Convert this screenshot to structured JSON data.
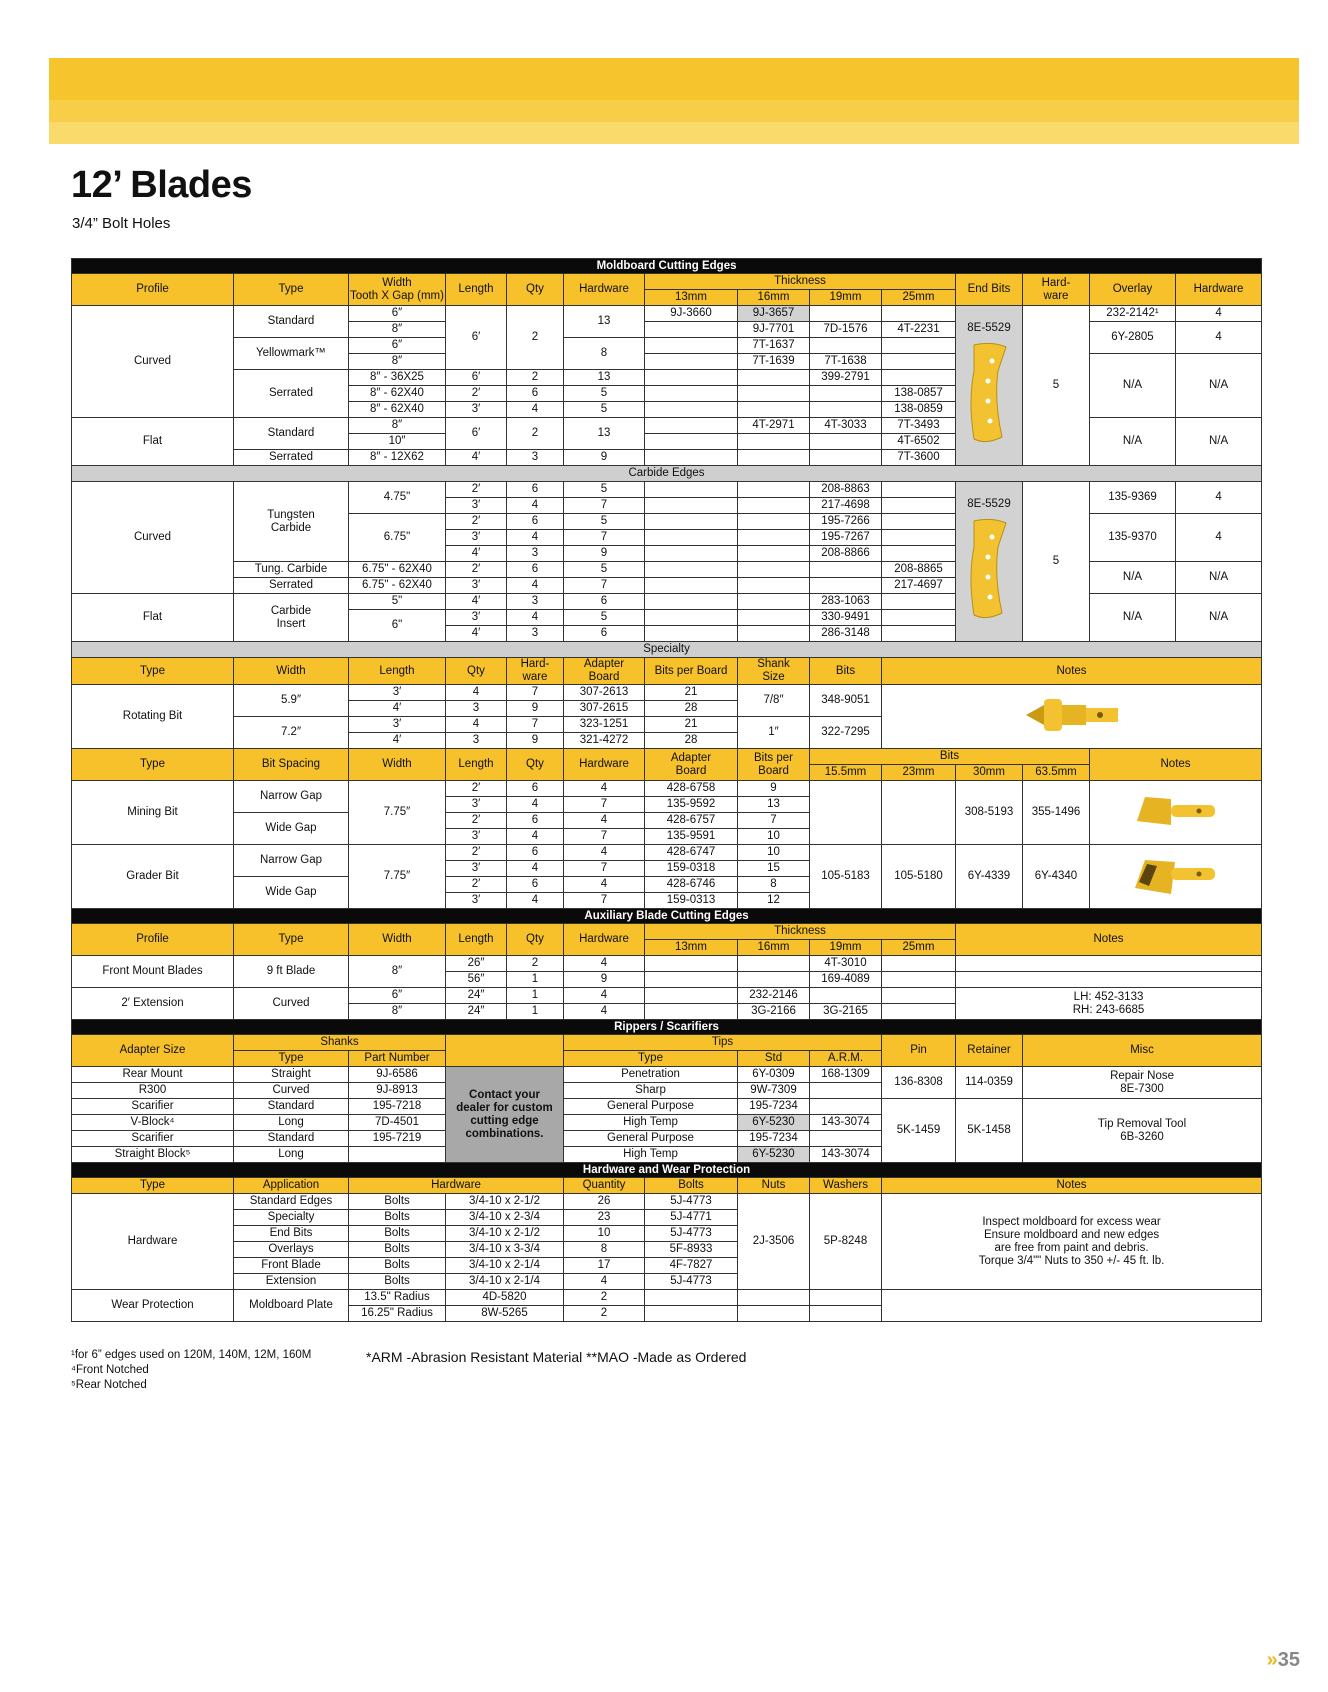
{
  "page": {
    "title": "12’ Blades",
    "subtitle": "3/4” Bolt Holes",
    "page_marker": "»",
    "page_number": "35"
  },
  "colors": {
    "accent_yellow": "#F6C12A",
    "section_black": "#0a0a0a",
    "section_gray": "#cfcfcf"
  },
  "rows": [
    [
      "Moldboard Cutting Edges"
    ],
    [
      "Profile",
      "Type",
      "Width\nTooth X Gap (mm)",
      "Length",
      "Qty",
      "Hardware",
      "Thickness",
      "End Bits",
      "Hard-\nware",
      "Overlay",
      "Hardware"
    ],
    [
      "13mm",
      "16mm",
      "19mm",
      "25mm"
    ],
    [
      "Curved",
      "Standard",
      "6″",
      "6′",
      "2",
      "13",
      "9J-3660",
      "9J-3657",
      "",
      "",
      "8E-5529",
      "5",
      "232-2142¹",
      "4"
    ],
    [
      "8″",
      "",
      "9J-7701",
      "7D-1576",
      "4T-2231",
      "6Y-2805",
      "4"
    ],
    [
      "Yellowmark™",
      "6″",
      "8",
      "",
      "7T-1637",
      "",
      ""
    ],
    [
      "8″",
      "",
      "7T-1639",
      "7T-1638",
      "",
      "N/A",
      "N/A"
    ],
    [
      "Serrated",
      "8″ - 36X25",
      "6′",
      "2",
      "13",
      "",
      "",
      "399-2791",
      ""
    ],
    [
      "8″ - 62X40",
      "2′",
      "6",
      "5",
      "",
      "",
      "",
      "138-0857"
    ],
    [
      "8″ - 62X40",
      "3′",
      "4",
      "5",
      "",
      "",
      "",
      "138-0859"
    ],
    [
      "Flat",
      "Standard",
      "8″",
      "6′",
      "2",
      "13",
      "",
      "4T-2971",
      "4T-3033",
      "7T-3493",
      "N/A",
      "N/A"
    ],
    [
      "10″",
      "",
      "",
      "",
      "4T-6502"
    ],
    [
      "Serrated",
      "8″ - 12X62",
      "4′",
      "3",
      "9",
      "",
      "",
      "",
      "7T-3600"
    ],
    [
      "Carbide Edges"
    ],
    [
      "Curved",
      "Tungsten\nCarbide",
      "4.75\"",
      "2′",
      "6",
      "5",
      "",
      "",
      "208-8863",
      "",
      "8E-5529",
      "5",
      "135-9369",
      "4"
    ],
    [
      "3′",
      "4",
      "7",
      "",
      "",
      "217-4698",
      ""
    ],
    [
      "6.75\"",
      "2′",
      "6",
      "5",
      "",
      "",
      "195-7266",
      "",
      "135-9370",
      "4"
    ],
    [
      "3′",
      "4",
      "7",
      "",
      "",
      "195-7267",
      ""
    ],
    [
      "4′",
      "3",
      "9",
      "",
      "",
      "208-8866",
      ""
    ],
    [
      "Tung. Carbide",
      "6.75\" - 62X40",
      "2′",
      "6",
      "5",
      "",
      "",
      "",
      "208-8865",
      "N/A",
      "N/A"
    ],
    [
      "Serrated",
      "6.75\" - 62X40",
      "3′",
      "4",
      "7",
      "",
      "",
      "",
      "217-4697"
    ],
    [
      "Flat",
      "Carbide\nInsert",
      "5\"",
      "4′",
      "3",
      "6",
      "",
      "",
      "283-1063",
      "",
      "N/A",
      "N/A"
    ],
    [
      "6\"",
      "3′",
      "4",
      "5",
      "",
      "",
      "330-9491",
      ""
    ],
    [
      "4′",
      "3",
      "6",
      "",
      "",
      "286-3148",
      ""
    ],
    [
      "Specialty"
    ],
    [
      "Type",
      "Width",
      "Length",
      "Qty",
      "Hard-\nware",
      "Adapter\nBoard",
      "Bits per Board",
      "Shank\nSize",
      "Bits",
      "Notes"
    ],
    [
      "Rotating Bit",
      "5.9″",
      "3′",
      "4",
      "7",
      "307-2613",
      "21",
      "7/8″",
      "348-9051",
      ""
    ],
    [
      "4′",
      "3",
      "9",
      "307-2615",
      "28"
    ],
    [
      "7.2″",
      "3′",
      "4",
      "7",
      "323-1251",
      "21",
      "1″",
      "322-7295"
    ],
    [
      "4′",
      "3",
      "9",
      "321-4272",
      "28"
    ],
    [
      "Type",
      "Bit Spacing",
      "Width",
      "Length",
      "Qty",
      "Hardware",
      "Adapter\nBoard",
      "Bits per\nBoard",
      "Bits",
      "Notes"
    ],
    [
      "15.5mm",
      "23mm",
      "30mm",
      "63.5mm"
    ],
    [
      "Mining Bit",
      "Narrow Gap",
      "7.75″",
      "2′",
      "6",
      "4",
      "428-6758",
      "9",
      "",
      "",
      "308-5193",
      "355-1496",
      ""
    ],
    [
      "3′",
      "4",
      "7",
      "135-9592",
      "13"
    ],
    [
      "Wide Gap",
      "2′",
      "6",
      "4",
      "428-6757",
      "7"
    ],
    [
      "3′",
      "4",
      "7",
      "135-9591",
      "10"
    ],
    [
      "Grader Bit",
      "Narrow Gap",
      "7.75″",
      "2′",
      "6",
      "4",
      "428-6747",
      "10",
      "105-5183",
      "105-5180",
      "6Y-4339",
      "6Y-4340",
      ""
    ],
    [
      "3′",
      "4",
      "7",
      "159-0318",
      "15"
    ],
    [
      "Wide Gap",
      "2′",
      "6",
      "4",
      "428-6746",
      "8"
    ],
    [
      "3′",
      "4",
      "7",
      "159-0313",
      "12"
    ],
    [
      "Auxiliary Blade Cutting Edges"
    ],
    [
      "Profile",
      "Type",
      "Width",
      "Length",
      "Qty",
      "Hardware",
      "Thickness",
      "Notes"
    ],
    [
      "13mm",
      "16mm",
      "19mm",
      "25mm"
    ],
    [
      "Front Mount Blades",
      "9 ft Blade",
      "8″",
      "26″",
      "2",
      "4",
      "",
      "",
      "4T-3010",
      "",
      ""
    ],
    [
      "56″",
      "1",
      "9",
      "",
      "",
      "169-4089",
      "",
      ""
    ],
    [
      "2′ Extension",
      "Curved",
      "6″",
      "24″",
      "1",
      "4",
      "",
      "232-2146",
      "",
      "",
      "LH: 452-3133\nRH: 243-6685"
    ],
    [
      "8″",
      "24″",
      "1",
      "4",
      "",
      "3G-2166",
      "3G-2165",
      ""
    ],
    [
      "Rippers / Scarifiers"
    ],
    [
      "Adapter Size",
      "Shanks",
      "",
      "Tips",
      "Pin",
      "Retainer",
      "Misc"
    ],
    [
      "Type",
      "Part Number",
      "Type",
      "Std",
      "A.R.M."
    ],
    [
      "Rear Mount",
      "Straight",
      "9J-6586",
      "Contact your\ndealer for custom\ncutting edge\ncombinations.",
      "Penetration",
      "6Y-0309",
      "168-1309",
      "136-8308",
      "114-0359",
      "Repair Nose\n8E-7300"
    ],
    [
      "R300",
      "Curved",
      "9J-8913",
      "Sharp",
      "9W-7309",
      ""
    ],
    [
      "Scarifier",
      "Standard",
      "195-7218",
      "General Purpose",
      "195-7234",
      "",
      "5K-1459",
      "5K-1458",
      "Tip Removal Tool\n6B-3260"
    ],
    [
      "V-Block⁴",
      "Long",
      "7D-4501",
      "High Temp",
      "6Y-5230",
      "143-3074"
    ],
    [
      "Scarifier",
      "Standard",
      "195-7219",
      "General Purpose",
      "195-7234",
      ""
    ],
    [
      "Straight Block⁵",
      "Long",
      "",
      "High Temp",
      "6Y-5230",
      "143-3074"
    ],
    [
      "Hardware and Wear Protection"
    ],
    [
      "Type",
      "Application",
      "Hardware",
      "Quantity",
      "Bolts",
      "Nuts",
      "Washers",
      "Notes"
    ],
    [
      "Hardware",
      "Standard Edges",
      "Bolts",
      "3/4-10 x 2-1/2",
      "26",
      "5J-4773",
      "2J-3506",
      "5P-8248",
      "Inspect moldboard for excess wear\nEnsure moldboard and new edges\nare free from paint and debris.\nTorque 3/4\"\" Nuts to 350 +/- 45 ft. lb."
    ],
    [
      "Specialty",
      "Bolts",
      "3/4-10 x 2-3/4",
      "23",
      "5J-4771"
    ],
    [
      "End Bits",
      "Bolts",
      "3/4-10 x 2-1/2",
      "10",
      "5J-4773"
    ],
    [
      "Overlays",
      "Bolts",
      "3/4-10 x 3-3/4",
      "8",
      "5F-8933"
    ],
    [
      "Front Blade",
      "Bolts",
      "3/4-10 x 2-1/4",
      "17",
      "4F-7827"
    ],
    [
      "Extension",
      "Bolts",
      "3/4-10 x 2-1/4",
      "4",
      "5J-4773"
    ],
    [
      "Wear Protection",
      "Moldboard Plate",
      "13.5\" Radius",
      "4D-5820",
      "2",
      "",
      "",
      "",
      ""
    ],
    [
      "16.25\" Radius",
      "8W-5265",
      "2",
      "",
      "",
      ""
    ]
  ],
  "footnotes": {
    "note1": "¹for 6” edges used on 120M, 140M, 12M, 160M",
    "note4": "⁴Front Notched",
    "note5": "⁵Rear Notched",
    "abbrev": "*ARM -Abrasion Resistant Material  **MAO -Made as Ordered"
  }
}
